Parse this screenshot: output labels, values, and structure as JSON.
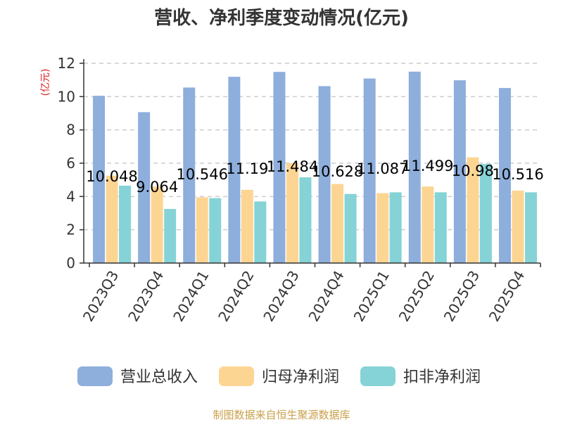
{
  "chart_data": {
    "type": "bar",
    "title": "营收、净利季度变动情况(亿元)",
    "ylabel": "(亿元)",
    "ylim": [
      0,
      12
    ],
    "yticks": [
      0,
      2,
      4,
      6,
      8,
      10,
      12
    ],
    "grid": true,
    "legend_position": "bottom",
    "categories": [
      "2023Q3",
      "2023Q4",
      "2024Q1",
      "2024Q2",
      "2024Q3",
      "2024Q4",
      "2025Q1",
      "2025Q2",
      "2025Q3",
      "2025Q4"
    ],
    "series": [
      {
        "name": "营业总收入",
        "color": "#8eaedc",
        "values": [
          10.048,
          9.064,
          10.546,
          11.19,
          11.484,
          10.628,
          11.087,
          11.499,
          10.98,
          10.516
        ],
        "labels": [
          "10.048",
          "9.064",
          "10.546",
          "11.19",
          "11.484",
          "10.628",
          "11.087",
          "11.499",
          "10.98",
          "10.516"
        ]
      },
      {
        "name": "归母净利润",
        "color": "#fdd593",
        "values": [
          5.25,
          4.6,
          3.95,
          4.4,
          6.0,
          4.75,
          4.2,
          4.6,
          6.35,
          4.35
        ]
      },
      {
        "name": "扣非净利润",
        "color": "#85d3d6",
        "values": [
          4.65,
          3.25,
          3.9,
          3.7,
          5.15,
          4.15,
          4.25,
          4.25,
          5.95,
          4.25
        ]
      }
    ]
  },
  "source_text": "制图数据来自恒生聚源数据库",
  "colors": {
    "ylabel": "#e02020",
    "source": "#c9a04a",
    "grid": "#cccccc",
    "axis": "#333333"
  }
}
